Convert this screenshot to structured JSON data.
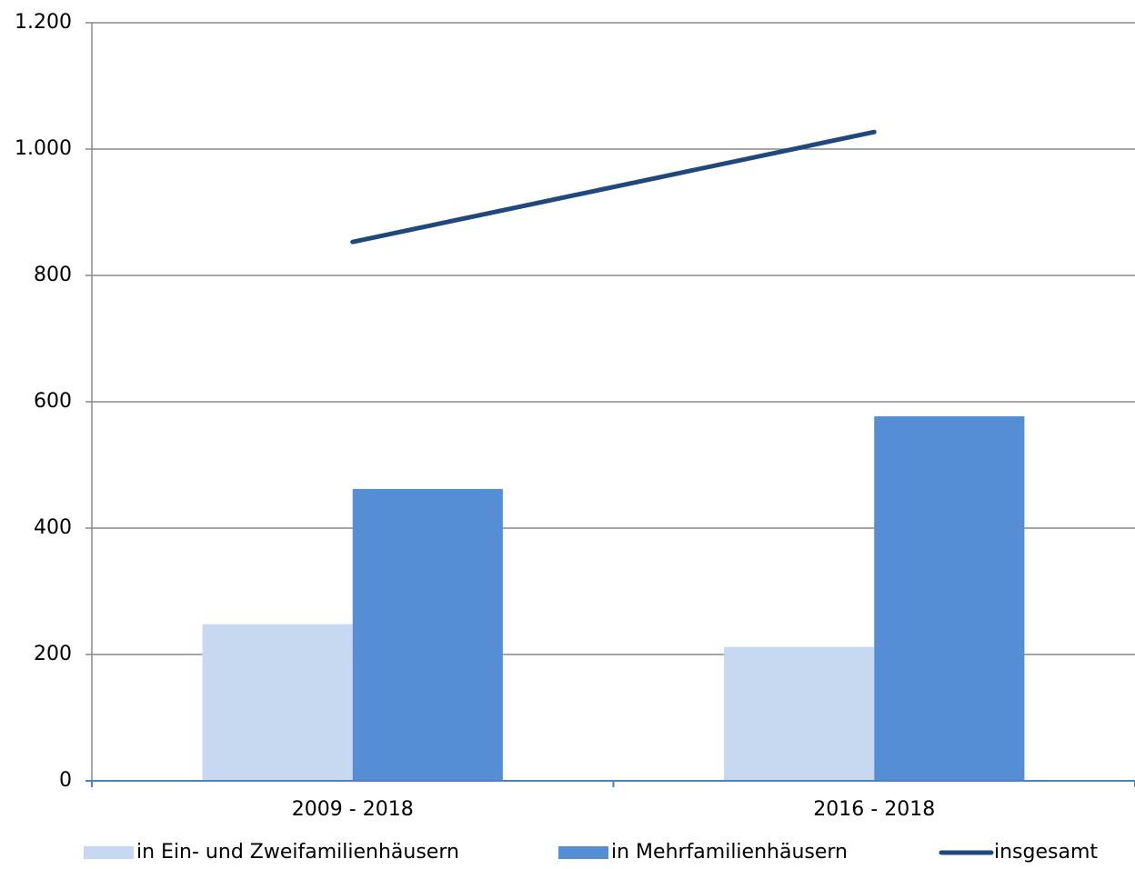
{
  "chart_data": {
    "type": "bar",
    "categories": [
      "2009 - 2018",
      "2016 - 2018"
    ],
    "series": [
      {
        "name": "in Ein- und Zweifamilienhäusern",
        "color": "#c6d9f1",
        "type": "bar",
        "values": [
          248,
          212
        ]
      },
      {
        "name": "in Mehrfamilienhäusern",
        "color": "#558ed5",
        "type": "bar",
        "values": [
          462,
          577
        ]
      },
      {
        "name": "insgesamt",
        "color": "#1f497d",
        "type": "line",
        "values": [
          853,
          1027
        ]
      }
    ],
    "ylim": [
      0,
      1200
    ],
    "yticks": [
      0,
      200,
      400,
      600,
      800,
      {
        "value": 1000,
        "label": "1.000"
      },
      {
        "value": 1200,
        "label": "1.200"
      }
    ],
    "grid": true,
    "legend": "bottom"
  }
}
